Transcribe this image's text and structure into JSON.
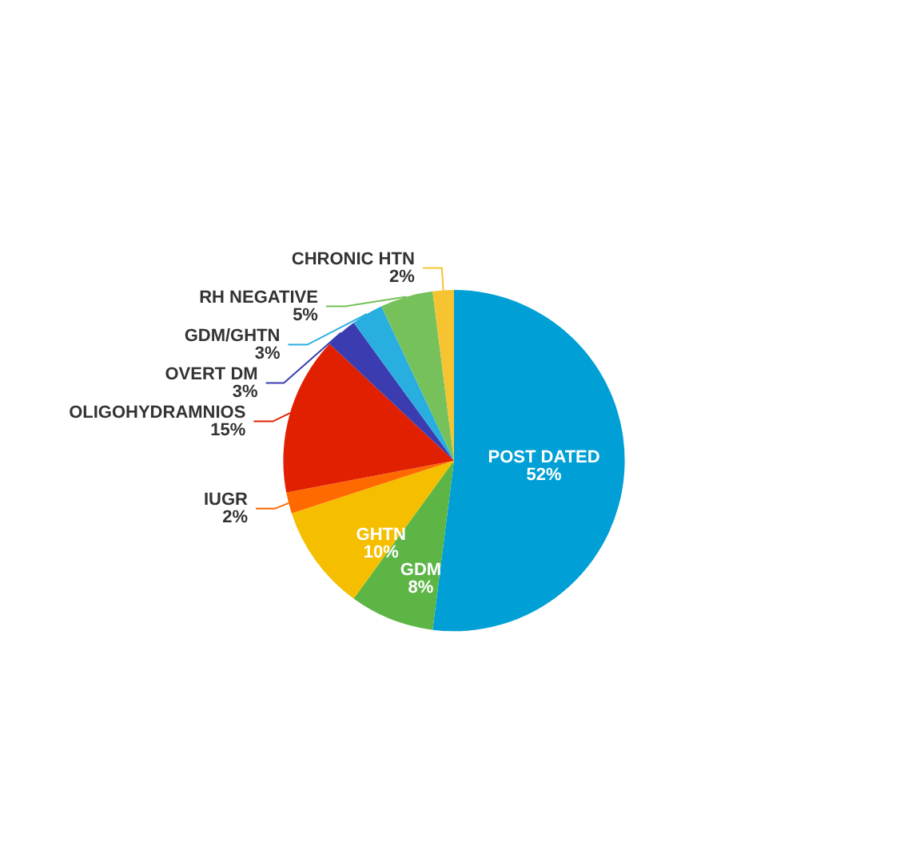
{
  "chart_data": {
    "type": "pie",
    "categories": [
      "POST DATED",
      "GDM",
      "GHTN",
      "IUGR",
      "OLIGOHYDRAMNIOS",
      "OVERT DM",
      "GDM/GHTN",
      "RH NEGATIVE",
      "CHRONIC HTN"
    ],
    "values": [
      52,
      8,
      10,
      2,
      15,
      3,
      3,
      5,
      2
    ],
    "colors": [
      "#00a0d6",
      "#5cb545",
      "#f5bf00",
      "#ff6a00",
      "#e02000",
      "#3b3cb0",
      "#29aee0",
      "#76c15a",
      "#f5c430"
    ],
    "value_labels": [
      "52%",
      "8%",
      "10%",
      "2%",
      "15%",
      "3%",
      "3%",
      "5%",
      "2%"
    ],
    "legend": false
  }
}
